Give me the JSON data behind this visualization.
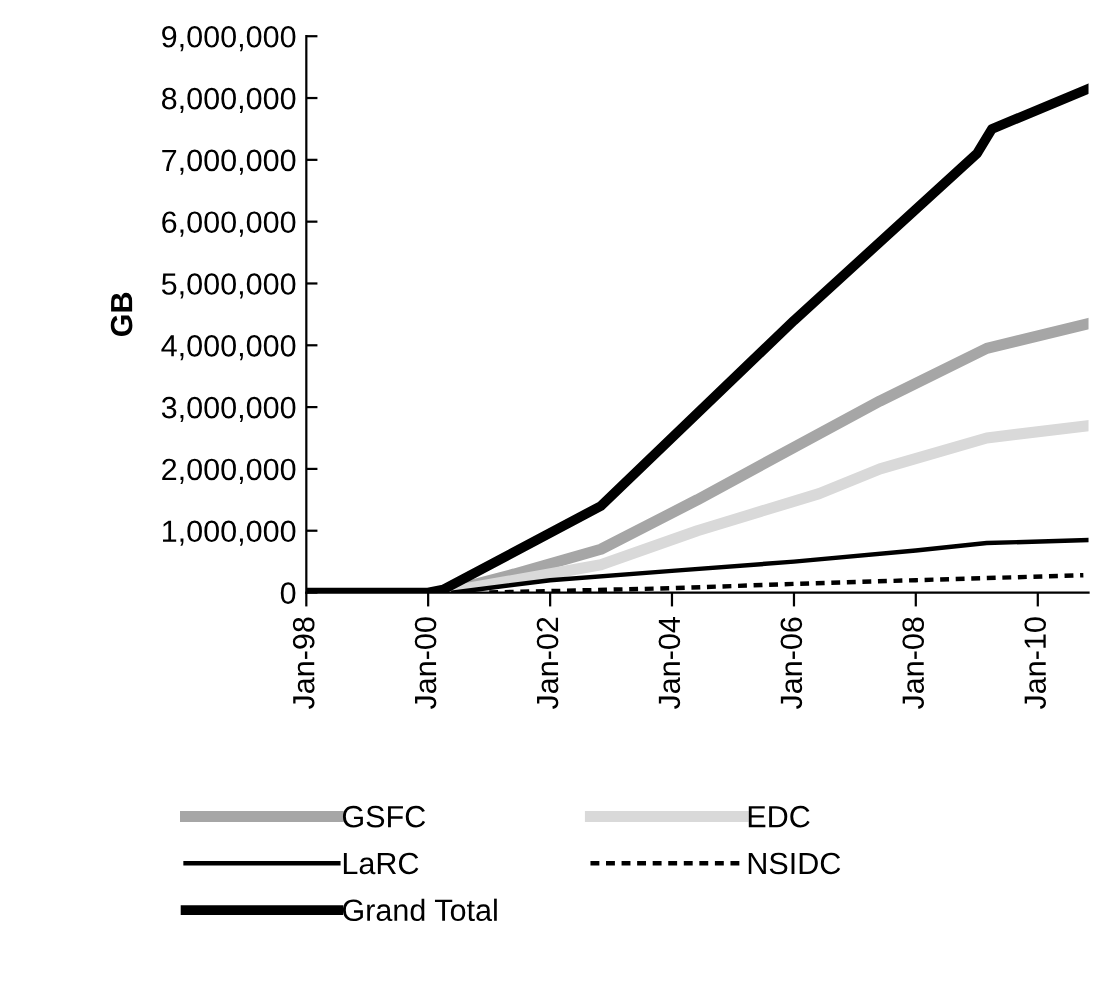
{
  "chart_data": {
    "type": "line",
    "ylabel": "GB",
    "legend": "bottom",
    "grid": false,
    "marker": "none",
    "xlim": [
      "1998-01",
      "2010-11"
    ],
    "xticks": [
      {
        "value": "1998-01",
        "label": "Jan-98"
      },
      {
        "value": "2000-01",
        "label": "Jan-00"
      },
      {
        "value": "2002-01",
        "label": "Jan-02"
      },
      {
        "value": "2004-01",
        "label": "Jan-04"
      },
      {
        "value": "2006-01",
        "label": "Jan-06"
      },
      {
        "value": "2008-01",
        "label": "Jan-08"
      },
      {
        "value": "2010-01",
        "label": "Jan-10"
      }
    ],
    "ylim": [
      0,
      9000000
    ],
    "yticks": [
      0,
      {
        "value": 1000000,
        "label": "1,000,000"
      },
      {
        "value": 2000000,
        "label": "2,000,000"
      },
      {
        "value": 3000000,
        "label": "3,000,000"
      },
      {
        "value": 4000000,
        "label": "4,000,000"
      },
      {
        "value": 5000000,
        "label": "5,000,000"
      },
      {
        "value": 6000000,
        "label": "6,000,000"
      },
      {
        "value": 7000000,
        "label": "7,000,000"
      },
      {
        "value": 8000000,
        "label": "8,000,000"
      },
      {
        "value": 9000000,
        "label": "9,000,000"
      }
    ],
    "series": [
      {
        "name": "GSFC",
        "color": "#a6a6a6",
        "line_style": "solid",
        "x": [
          "2000-04",
          "2001-06",
          "2002-11",
          "2004-06",
          "2006-01",
          "2007-06",
          "2009-03",
          "2010-11"
        ],
        "values": [
          0,
          300000,
          700000,
          1500000,
          2350000,
          3100000,
          3950000,
          4350000
        ]
      },
      {
        "name": "EDC",
        "color": "#d9d9d9",
        "line_style": "solid",
        "x": [
          "2000-04",
          "2001-06",
          "2002-11",
          "2004-06",
          "2006-06",
          "2007-06",
          "2009-03",
          "2010-11"
        ],
        "values": [
          0,
          200000,
          450000,
          1000000,
          1600000,
          2000000,
          2500000,
          2700000
        ]
      },
      {
        "name": "LaRC",
        "color": "#000000",
        "line_style": "solid",
        "x": [
          "2000-06",
          "2002-01",
          "2004-01",
          "2006-01",
          "2008-01",
          "2009-03",
          "2010-11"
        ],
        "values": [
          0,
          200000,
          350000,
          500000,
          680000,
          800000,
          850000
        ]
      },
      {
        "name": "NSIDC",
        "color": "#000000",
        "line_style": "dashed",
        "x": [
          "2001-01",
          "2004-01",
          "2006-01",
          "2008-01",
          "2010-10"
        ],
        "values": [
          0,
          70000,
          140000,
          200000,
          280000
        ]
      },
      {
        "name": "Grand Total",
        "color": "#000000",
        "line_style": "solid",
        "x": [
          "1998-01",
          "2000-01",
          "2000-04",
          "2002-11",
          "2006-01",
          "2009-01",
          "2009-04",
          "2010-11"
        ],
        "values": [
          0,
          0,
          50000,
          1400000,
          4400000,
          7100000,
          7500000,
          8150000
        ]
      }
    ]
  }
}
